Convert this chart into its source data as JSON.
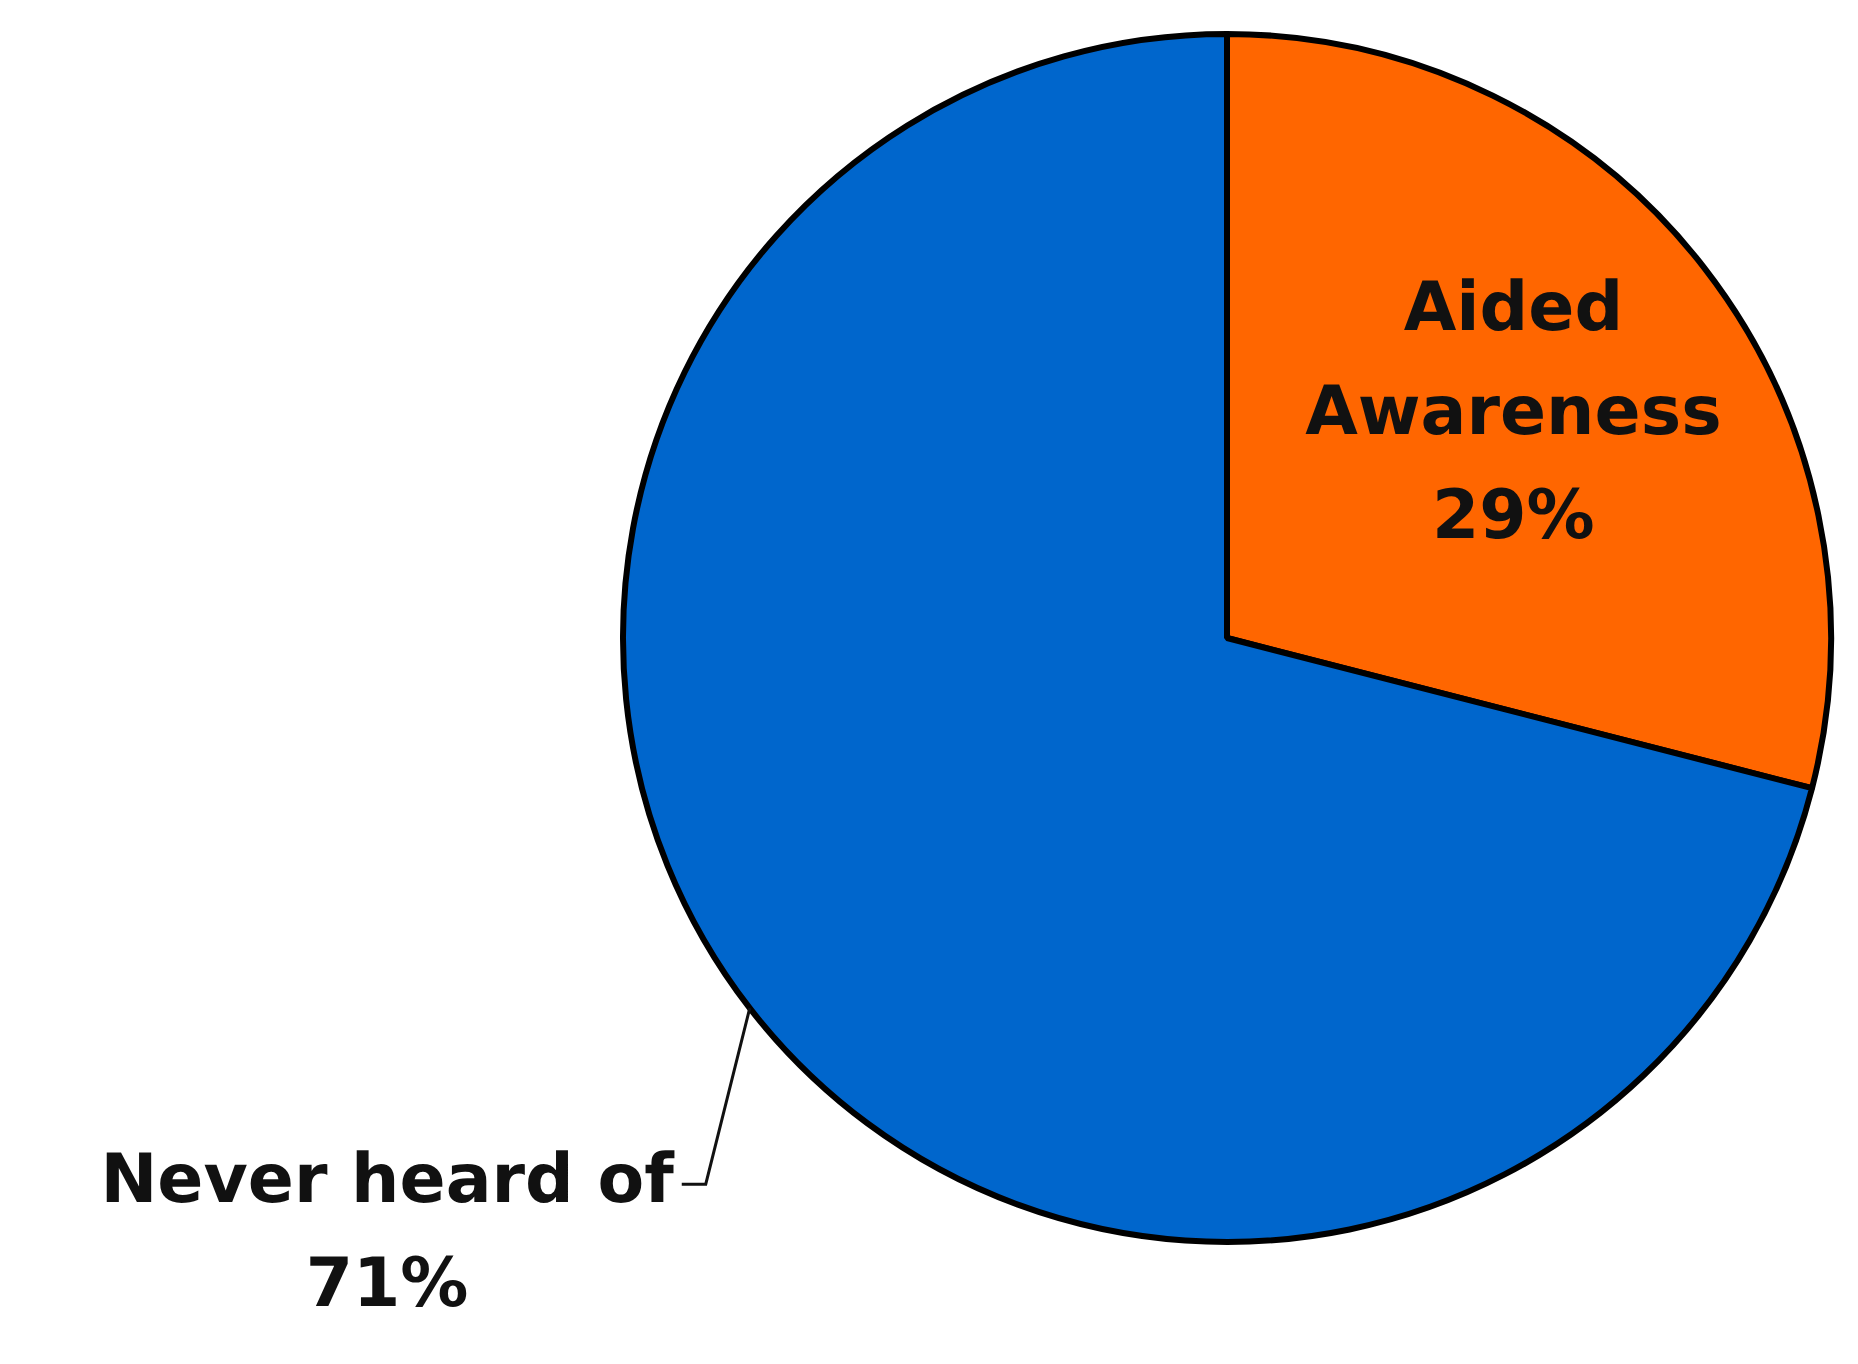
{
  "chart_data": {
    "type": "pie",
    "categories": [
      "Aided Awareness",
      "Never heard of"
    ],
    "values": [
      29,
      71
    ],
    "colors": [
      "#ff6600",
      "#0066cc"
    ],
    "value_labels": [
      "29%",
      "71%"
    ]
  }
}
